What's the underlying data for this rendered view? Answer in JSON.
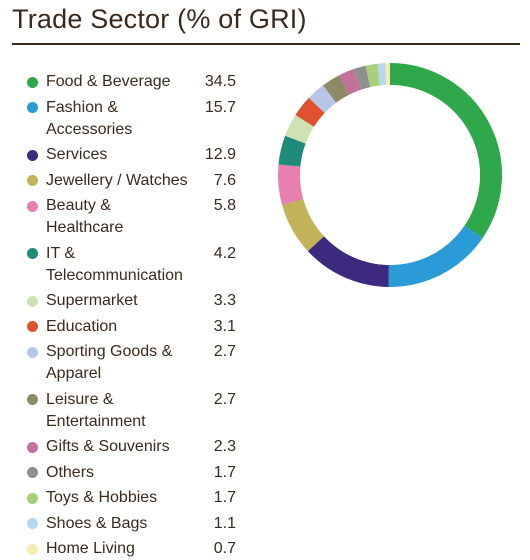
{
  "title": "Trade Sector (% of GRI)",
  "chart_data": {
    "type": "pie",
    "style": "donut",
    "title": "Trade Sector (% of GRI)",
    "legend_position": "left",
    "categories": [
      "Food & Beverage",
      "Fashion & Accessories",
      "Services",
      "Jewellery / Watches",
      "Beauty & Healthcare",
      "IT & Telecommunication",
      "Supermarket",
      "Education",
      "Sporting Goods & Apparel",
      "Leisure & Entertainment",
      "Gifts & Souvenirs",
      "Others",
      "Toys & Hobbies",
      "Shoes & Bags",
      "Home Living"
    ],
    "labels": [
      [
        "Food & Beverage"
      ],
      [
        "Fashion &",
        "Accessories"
      ],
      [
        "Services"
      ],
      [
        "Jewellery / Watches"
      ],
      [
        "Beauty &",
        "Healthcare"
      ],
      [
        "IT &",
        "Telecommunication"
      ],
      [
        "Supermarket"
      ],
      [
        "Education"
      ],
      [
        "Sporting Goods &",
        "Apparel"
      ],
      [
        "Leisure &",
        "Entertainment"
      ],
      [
        "Gifts & Souvenirs"
      ],
      [
        "Others"
      ],
      [
        "Toys & Hobbies"
      ],
      [
        "Shoes & Bags"
      ],
      [
        "Home Living"
      ]
    ],
    "value_labels": [
      "34.5",
      "15.7",
      "12.9",
      "7.6",
      "5.8",
      "4.2",
      "3.3",
      "3.1",
      "2.7",
      "2.7",
      "2.3",
      "1.7",
      "1.7",
      "1.1",
      "0.7"
    ],
    "values": [
      34.5,
      15.7,
      12.9,
      7.6,
      5.8,
      4.2,
      3.3,
      3.1,
      2.7,
      2.7,
      2.3,
      1.7,
      1.7,
      1.1,
      0.7
    ],
    "colors": [
      "#2ea84a",
      "#2a9bd6",
      "#3b2a7e",
      "#c2b25a",
      "#e77fb0",
      "#1f8c7b",
      "#cfe2b3",
      "#e0522f",
      "#b6c6e6",
      "#8f8a66",
      "#c2729a",
      "#8f8f8f",
      "#a9cf7a",
      "#b3d8ef",
      "#f5ebb0"
    ]
  }
}
